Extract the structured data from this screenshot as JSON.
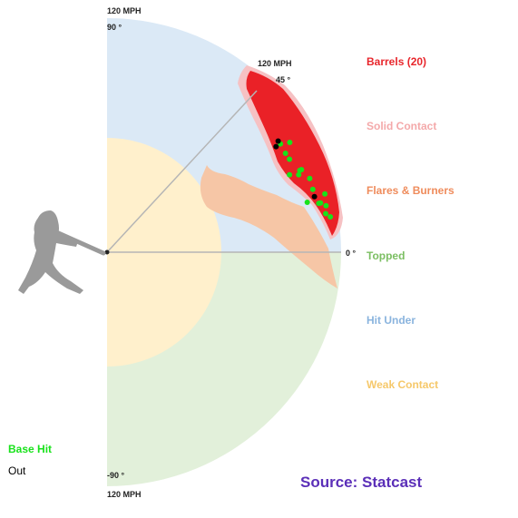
{
  "chart_data": {
    "type": "scatter",
    "speed_labels": {
      "top": "120 MPH",
      "diagonal": "120 MPH",
      "bottom": "120 MPH"
    },
    "angle_labels": {
      "top": "90 °",
      "diagonal": "45 °",
      "horizontal": "0 °",
      "bottom": "-90 °"
    },
    "zones": [
      {
        "name": "Barrels (20)",
        "color": "#e8262c"
      },
      {
        "name": "Solid Contact",
        "color": "#f4a9aa"
      },
      {
        "name": "Flares & Burners",
        "color": "#ef8c5c"
      },
      {
        "name": "Topped",
        "color": "#7cbf63"
      },
      {
        "name": "Hit Under",
        "color": "#8ab4de"
      },
      {
        "name": "Weak Contact",
        "color": "#f6c86a"
      }
    ],
    "outcome_legend": [
      {
        "name": "Base Hit",
        "color": "#18e21b"
      },
      {
        "name": "Out",
        "color": "#000000"
      }
    ],
    "source": "Source: Statcast",
    "series": [
      {
        "name": "Base Hit",
        "color": "#18e21b",
        "points": [
          {
            "exit_velocity": 101.6,
            "launch_angle": 23
          },
          {
            "exit_velocity": 105.0,
            "launch_angle": 27
          },
          {
            "exit_velocity": 104.8,
            "launch_angle": 32
          },
          {
            "exit_velocity": 104.6,
            "launch_angle": 29
          },
          {
            "exit_velocity": 109.3,
            "launch_angle": 31
          },
          {
            "exit_velocity": 106.0,
            "launch_angle": 22
          },
          {
            "exit_velocity": 107.3,
            "launch_angle": 23
          },
          {
            "exit_velocity": 108.3,
            "launch_angle": 23
          },
          {
            "exit_velocity": 110.6,
            "launch_angle": 20
          },
          {
            "exit_velocity": 110.3,
            "launch_angle": 17
          },
          {
            "exit_velocity": 115.6,
            "launch_angle": 15
          },
          {
            "exit_velocity": 114.8,
            "launch_angle": 12
          },
          {
            "exit_velocity": 111.4,
            "launch_angle": 13
          },
          {
            "exit_velocity": 105.8,
            "launch_angle": 14
          },
          {
            "exit_velocity": 113.8,
            "launch_angle": 10
          },
          {
            "exit_velocity": 115.9,
            "launch_angle": 9
          },
          {
            "exit_velocity": 112.3,
            "launch_angle": 13
          }
        ]
      },
      {
        "name": "Out",
        "color": "#000000",
        "points": [
          {
            "exit_velocity": 104.6,
            "launch_angle": 33
          },
          {
            "exit_velocity": 102.2,
            "launch_angle": 32
          },
          {
            "exit_velocity": 110.1,
            "launch_angle": 15
          }
        ]
      }
    ]
  }
}
